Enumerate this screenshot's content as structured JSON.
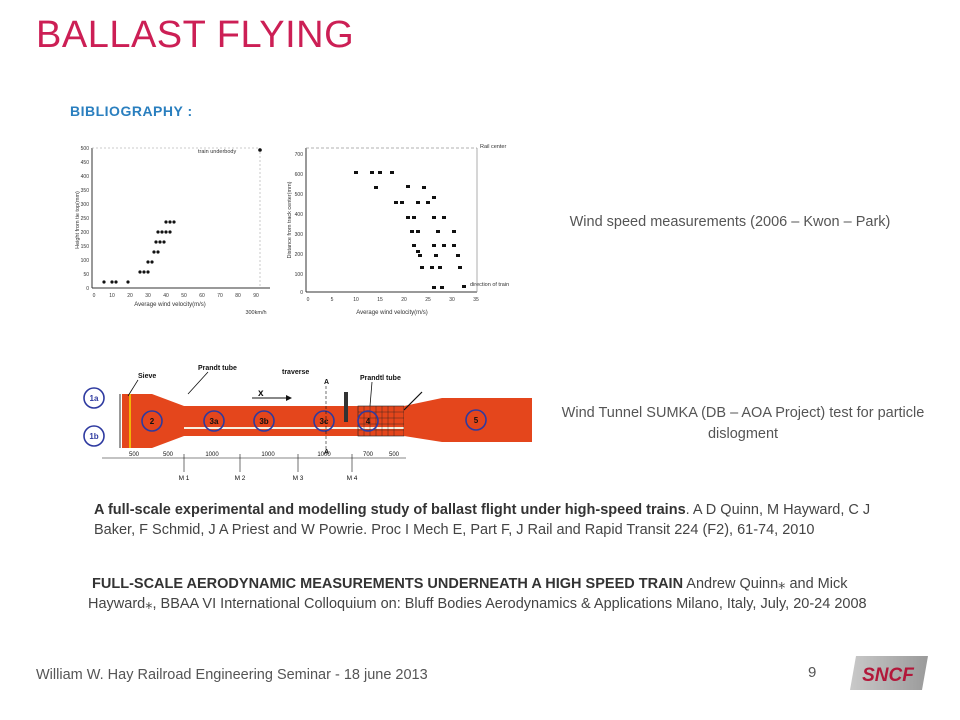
{
  "slide": {
    "title": "BALLAST FLYING",
    "section_label": "BIBLIOGRAPHY  :",
    "caption_wind_speed": "Wind speed measurements  (2006 – Kwon – Park)",
    "caption_wind_tunnel": "Wind Tunnel SUMKA (DB – AOA Project) test for particle dislogment",
    "reference_1": {
      "title": "A full-scale experimental  and modelling study of ballast flight under high-speed  trains",
      "details": ". A D Quinn, M Hayward,  C J Baker,  F Schmid,  J A Priest and W Powrie.  Proc I Mech E, Part F, J Rail and Rapid Transit 224 (F2), 61-74, 2010"
    },
    "reference_2": {
      "title": "FULL-SCALE AERODYNAMIC  MEASUREMENTS  UNDERNEATH  A HIGH SPEED TRAIN",
      "details": " Andrew Quinn⁎  and Mick Hayward⁎,  BBAA VI International  Colloquium on:  Bluff Bodies Aerodynamics & Applications  Milano,  Italy, July, 20-24 2008"
    },
    "footer": "William W. Hay Railroad Engineering Seminar - 18 june 2013",
    "page_number": "9",
    "logo_text": "SNCF"
  },
  "figure_left": {
    "legend": "train underbody",
    "ylabel": "Height from tie top(mm)",
    "xlabel": "Average wind velocity(m/s)",
    "annotation": "300km/h",
    "y_ticks": [
      "500",
      "450",
      "400",
      "350",
      "300",
      "250",
      "200",
      "150",
      "100",
      "50",
      "0"
    ],
    "x_ticks": [
      "0",
      "10",
      "20",
      "30",
      "40",
      "50",
      "60",
      "70",
      "80",
      "90"
    ]
  },
  "figure_right": {
    "legend": "Rail center",
    "ylabel": "Distance from track center(mm)",
    "xlabel": "Average wind velocity(m/s)",
    "annotation": "direction of train",
    "y_ticks": [
      "700",
      "600",
      "500",
      "400",
      "300",
      "200",
      "100",
      "0"
    ],
    "x_ticks": [
      "0",
      "5",
      "10",
      "15",
      "20",
      "25",
      "30",
      "35"
    ]
  },
  "wind_tunnel": {
    "labels": {
      "sieve": "Sieve",
      "prandt_tube_1": "Prandt  tube",
      "traverse": "traverse",
      "prandtl_tube_2": "Prandtl  tube",
      "x_axis": "x",
      "section_1a": "1a",
      "section_1b": "1b",
      "section_2": "2",
      "section_3a": "3a",
      "section_3b": "3b",
      "section_3c": "3c",
      "section_4": "4",
      "section_5": "5",
      "m1": "M 1",
      "m2": "M 2",
      "m3": "M 3",
      "m4": "M 4",
      "dim_500a": "500",
      "dim_500b": "500",
      "dim_1000a": "1000",
      "dim_1000b": "1000",
      "dim_1000c": "1000",
      "dim_700": "700",
      "dim_last": "500",
      "marker_a_top": "A",
      "marker_a_bottom": "A"
    },
    "tunnel_color": "#e4461c"
  }
}
